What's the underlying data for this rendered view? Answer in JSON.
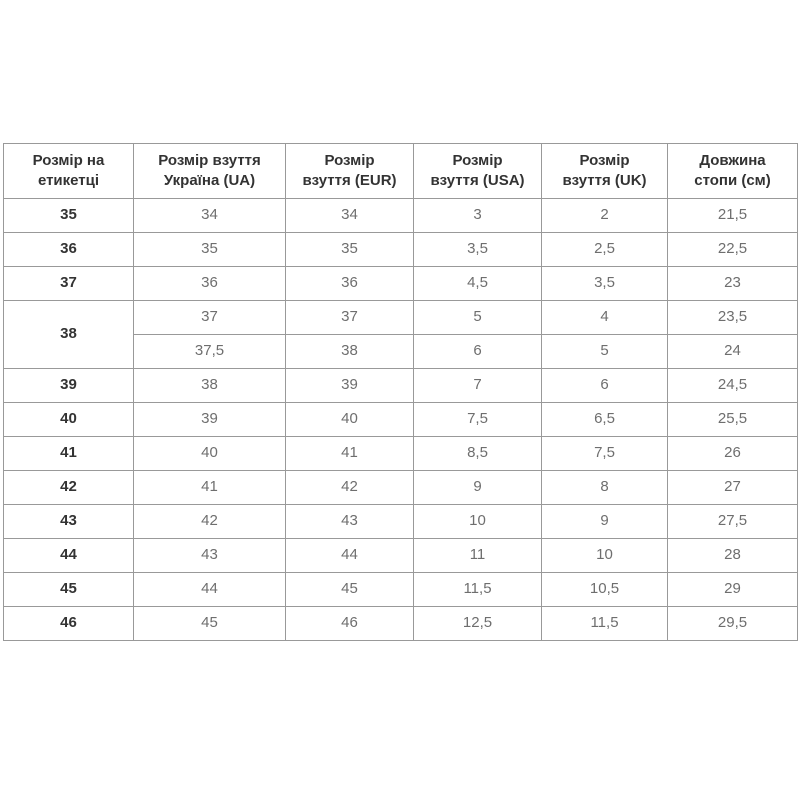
{
  "chart_data": {
    "type": "table",
    "title": "",
    "columns": [
      "Розмір на\nетикетці",
      "Розмір взуття\nУкраїна (UA)",
      "Розмір\nвзуття (EUR)",
      "Розмір\nвзуття (USA)",
      "Розмір\nвзуття (UK)",
      "Довжина\nстопи (см)"
    ],
    "rows": [
      [
        "35",
        "34",
        "34",
        "3",
        "2",
        "21,5"
      ],
      [
        "36",
        "35",
        "35",
        "3,5",
        "2,5",
        "22,5"
      ],
      [
        "37",
        "36",
        "36",
        "4,5",
        "3,5",
        "23"
      ],
      [
        "38",
        "37",
        "37",
        "5",
        "4",
        "23,5"
      ],
      [
        "38",
        "37,5",
        "38",
        "6",
        "5",
        "24"
      ],
      [
        "39",
        "38",
        "39",
        "7",
        "6",
        "24,5"
      ],
      [
        "40",
        "39",
        "40",
        "7,5",
        "6,5",
        "25,5"
      ],
      [
        "41",
        "40",
        "41",
        "8,5",
        "7,5",
        "26"
      ],
      [
        "42",
        "41",
        "42",
        "9",
        "8",
        "27"
      ],
      [
        "43",
        "42",
        "43",
        "10",
        "9",
        "27,5"
      ],
      [
        "44",
        "43",
        "44",
        "11",
        "10",
        "28"
      ],
      [
        "45",
        "44",
        "45",
        "11,5",
        "10,5",
        "29"
      ],
      [
        "46",
        "45",
        "46",
        "12,5",
        "11,5",
        "29,5"
      ]
    ],
    "merged_first_column": true,
    "grid": "on",
    "legend_position": "none"
  },
  "colors": {
    "border": "#999999",
    "header_text": "#333333",
    "label_text": "#333333",
    "value_text": "#6e6e6e",
    "background": "#ffffff"
  }
}
